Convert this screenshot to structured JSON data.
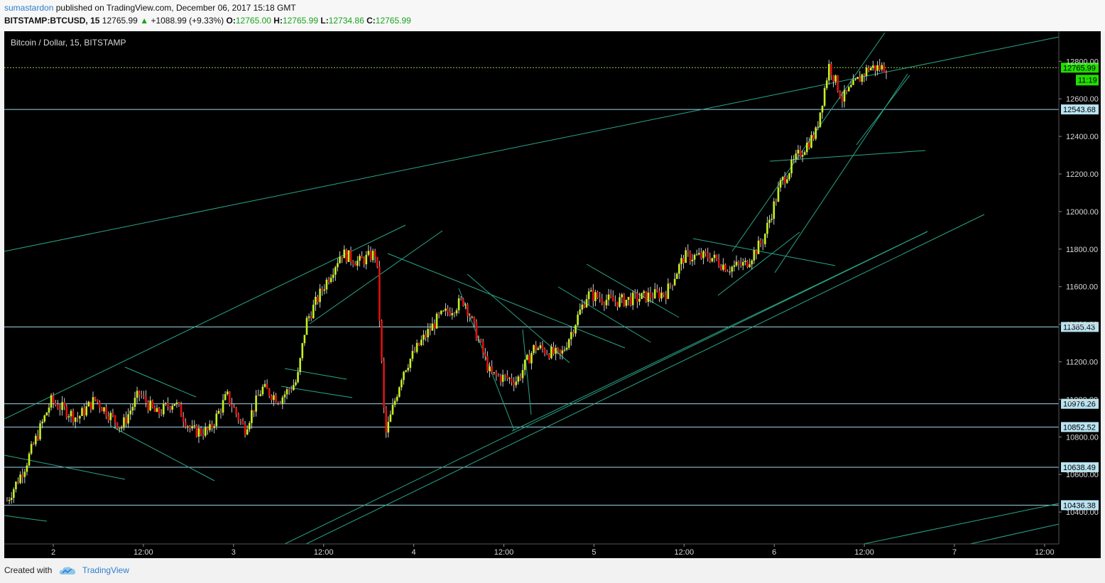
{
  "header": {
    "author": "sumastardon",
    "published_text": "published on TradingView.com, December 06, 2017 15:18 GMT",
    "symbol": "BITSTAMP:BTCUSD, 15",
    "last": "12765.99",
    "change_arrow": "▲",
    "change": "+1088.99 (+9.33%)",
    "open_label": "O:",
    "open": "12765.00",
    "high_label": "H:",
    "high": "12765.99",
    "low_label": "L:",
    "low": "12734.86",
    "close_label": "C:",
    "close": "12765.99"
  },
  "colors": {
    "background": "#000000",
    "up_candle": "#c6f21e",
    "down_candle": "#e01010",
    "trendline": "#2ba58a",
    "level_line": "#9fd7ea",
    "price_line": "#9acd32",
    "axis_text": "#d8d8d8",
    "current_price_badge": "#22dd00"
  },
  "footer": {
    "created_with": "Created with",
    "brand": "TradingView",
    "logo_icon": "tradingview-cloud-icon"
  },
  "chart_data": {
    "type": "candlestick",
    "title": "Bitcoin / Dollar, 15, BITSTAMP",
    "ylim": [
      10230,
      12960
    ],
    "y_ticks": [
      10400,
      10600,
      10800,
      11000,
      11200,
      11400,
      11600,
      11800,
      12000,
      12200,
      12400,
      12600,
      12800
    ],
    "x_ticks": [
      "2",
      "12:00",
      "3",
      "12:00",
      "4",
      "12:00",
      "5",
      "12:00",
      "6",
      "12:00",
      "7",
      "12:00"
    ],
    "grid": false,
    "horizontal_levels": [
      12543.68,
      11385.43,
      10976.26,
      10852.52,
      10638.49,
      10436.38
    ],
    "current_price": 12765.99,
    "countdown": "11:19",
    "close_path": [
      [
        0,
        10460
      ],
      [
        0.02,
        10640
      ],
      [
        0.05,
        10990
      ],
      [
        0.08,
        10900
      ],
      [
        0.1,
        11000
      ],
      [
        0.13,
        10850
      ],
      [
        0.15,
        11030
      ],
      [
        0.17,
        10920
      ],
      [
        0.19,
        10990
      ],
      [
        0.21,
        10830
      ],
      [
        0.23,
        10830
      ],
      [
        0.25,
        11020
      ],
      [
        0.27,
        10840
      ],
      [
        0.29,
        11060
      ],
      [
        0.31,
        11000
      ],
      [
        0.33,
        11100
      ],
      [
        0.34,
        11410
      ],
      [
        0.36,
        11600
      ],
      [
        0.38,
        11780
      ],
      [
        0.4,
        11730
      ],
      [
        0.42,
        11780
      ],
      [
        0.43,
        10800
      ],
      [
        0.45,
        11150
      ],
      [
        0.47,
        11300
      ],
      [
        0.49,
        11430
      ],
      [
        0.52,
        11530
      ],
      [
        0.55,
        11130
      ],
      [
        0.58,
        11100
      ],
      [
        0.6,
        11280
      ],
      [
        0.63,
        11230
      ],
      [
        0.66,
        11560
      ],
      [
        0.69,
        11520
      ],
      [
        0.72,
        11540
      ],
      [
        0.75,
        11570
      ],
      [
        0.77,
        11760
      ],
      [
        0.8,
        11760
      ],
      [
        0.82,
        11700
      ],
      [
        0.84,
        11720
      ],
      [
        0.86,
        11850
      ],
      [
        0.88,
        12150
      ],
      [
        0.9,
        12300
      ],
      [
        0.92,
        12420
      ],
      [
        0.935,
        12780
      ],
      [
        0.95,
        12600
      ],
      [
        0.98,
        12766
      ],
      [
        1,
        12766
      ]
    ],
    "trendlines": [
      [
        [
          0.73,
          12900
        ],
        [
          4.6,
          12930
        ]
      ],
      [
        [
          0.5,
          11780
        ],
        [
          1.36,
          11840
        ]
      ]
    ]
  }
}
